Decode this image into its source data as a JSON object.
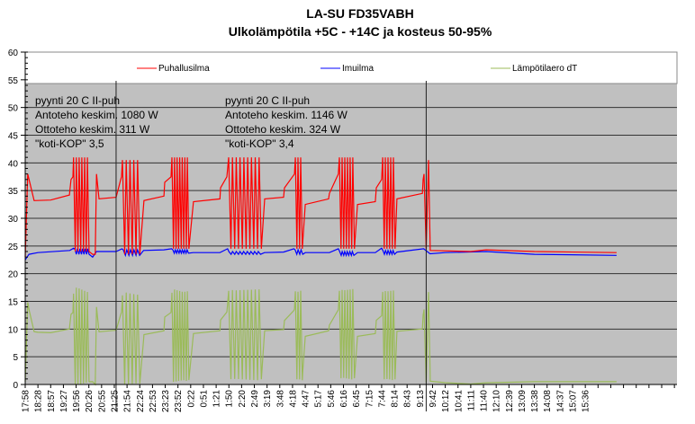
{
  "chart_data": {
    "type": "line",
    "title": "LA-SU FD35VABH",
    "subtitle": "Ulkolämpötila +5C - +14C ja kosteus 50-95%",
    "xlabel": "",
    "ylabel": "",
    "ylim": [
      0,
      60
    ],
    "yticks": [
      0,
      5,
      10,
      15,
      20,
      25,
      30,
      35,
      40,
      45,
      50,
      55,
      60
    ],
    "ytick_labels": [
      "0",
      "5",
      "10",
      "15",
      "20",
      "25",
      "30",
      "35",
      "40",
      "45",
      "50",
      "55",
      "60"
    ],
    "grid": true,
    "legend_position": "top",
    "x_tick_count": 52,
    "x_tick_labels": [
      "17:58",
      "18:28",
      "18:57",
      "19:27",
      "19:56",
      "20:26",
      "20:55",
      "21:25",
      "21:54",
      "22:24",
      "22:53",
      "23:23",
      "23:52",
      "0:22",
      "0:51",
      "1:21",
      "1:50",
      "2:20",
      "2:49",
      "3:19",
      "3:48",
      "4:18",
      "4:47",
      "5:17",
      "5:46",
      "6:16",
      "6:45",
      "7:15",
      "7:44",
      "8:14",
      "8:43",
      "9:13",
      "9:42",
      "10:12",
      "10:41",
      "11:11",
      "11:40",
      "12:10",
      "12:39",
      "13:09",
      "13:38",
      "14:08",
      "14:37",
      "15:07",
      "15:36"
    ],
    "x_units": "tick index (one label step ≈ 29.5 min)",
    "vertical_markers": [
      7.14,
      31.5
    ],
    "series": [
      {
        "name": "Puhallusilma",
        "color": "#ff0000",
        "points": [
          [
            0,
            23
          ],
          [
            0.2,
            38
          ],
          [
            0.7,
            33.2
          ],
          [
            2,
            33.3
          ],
          [
            3.47,
            34.2
          ],
          [
            3.6,
            37
          ],
          [
            3.75,
            37.5
          ],
          {
            "burst": [
              3.8,
              5.1,
              6,
              41,
              24
            ]
          },
          [
            5.3,
            23.5
          ],
          [
            5.5,
            23.5
          ],
          [
            5.6,
            38
          ],
          [
            5.8,
            33.5
          ],
          [
            7.14,
            33.8
          ],
          [
            7.5,
            37
          ],
          [
            7.57,
            37.5
          ],
          {
            "burst": [
              7.64,
              9.12,
              5,
              40.5,
              23.5
            ]
          },
          [
            9.33,
            33.2
          ],
          [
            10.9,
            34
          ],
          [
            10.96,
            36.5
          ],
          [
            11.46,
            37.5
          ],
          {
            "burst": [
              11.53,
              12.94,
              7,
              41,
              24.5
            ]
          },
          [
            13.22,
            33
          ],
          [
            15.3,
            33.5
          ],
          [
            15.35,
            35.5
          ],
          [
            15.84,
            37.5
          ],
          {
            "burst": [
              15.98,
              18.67,
              9,
              41,
              24.5
            ]
          },
          [
            18.81,
            33.5
          ],
          [
            20.3,
            33.8
          ],
          [
            20.37,
            35.5
          ],
          [
            21.15,
            38
          ],
          {
            "burst": [
              21.22,
              21.85,
              3,
              41,
              24.5
            ]
          },
          [
            22.0,
            32.5
          ],
          [
            23.83,
            33.5
          ],
          [
            23.9,
            34.5
          ],
          [
            24.6,
            38
          ],
          {
            "burst": [
              24.68,
              25.95,
              6,
              41,
              24.5
            ]
          },
          [
            26.1,
            32.5
          ],
          [
            27.5,
            33
          ],
          [
            27.58,
            35.5
          ],
          [
            28.0,
            37
          ],
          {
            "burst": [
              28.08,
              29.14,
              5,
              41,
              24.5
            ]
          },
          [
            29.2,
            33.5
          ],
          [
            31.2,
            34.5
          ],
          [
            31.26,
            37
          ],
          [
            31.33,
            38
          ],
          [
            31.5,
            24.5
          ],
          [
            31.68,
            40.5
          ],
          [
            31.82,
            24.2
          ],
          [
            35,
            24
          ],
          [
            36.2,
            24.3
          ],
          [
            40,
            24
          ],
          [
            46.46,
            23.8
          ]
        ]
      },
      {
        "name": "Imuilma",
        "color": "#0000ff",
        "points": [
          [
            0,
            22.5
          ],
          [
            0.3,
            23.5
          ],
          [
            1,
            23.8
          ],
          [
            3.5,
            24.2
          ],
          [
            3.8,
            24.6
          ],
          {
            "burst": [
              3.9,
              5.1,
              6,
              24.5,
              23.5
            ]
          },
          [
            5.3,
            23
          ],
          [
            5.6,
            24
          ],
          [
            7.14,
            24
          ],
          [
            7.6,
            24.5
          ],
          {
            "burst": [
              7.7,
              9.1,
              5,
              24.3,
              23.3
            ]
          },
          [
            9.3,
            24.2
          ],
          [
            10.9,
            24.3
          ],
          [
            11.5,
            24.5
          ],
          {
            "burst": [
              11.6,
              12.9,
              7,
              24.3,
              23.7
            ]
          },
          [
            13.2,
            23.8
          ],
          [
            15.3,
            23.8
          ],
          [
            15.9,
            24.5
          ],
          {
            "burst": [
              16,
              18.6,
              9,
              24,
              23.5
            ]
          },
          [
            18.8,
            23.8
          ],
          [
            20.3,
            23.9
          ],
          [
            21.1,
            24.5
          ],
          {
            "burst": [
              21.2,
              21.9,
              3,
              24.3,
              23.5
            ]
          },
          [
            22,
            23.8
          ],
          [
            23.9,
            23.8
          ],
          [
            24.6,
            24.5
          ],
          {
            "burst": [
              24.7,
              25.9,
              6,
              24,
              23.3
            ]
          },
          [
            26.1,
            23.8
          ],
          [
            27.5,
            23.8
          ],
          [
            28,
            24.6
          ],
          {
            "burst": [
              28.1,
              29.1,
              5,
              24.2,
              23.5
            ]
          },
          [
            29.2,
            23.9
          ],
          [
            31.3,
            24.5
          ],
          [
            31.8,
            23.6
          ],
          [
            33,
            23.8
          ],
          [
            36.2,
            24
          ],
          [
            40,
            23.5
          ],
          [
            46.46,
            23.3
          ]
        ]
      },
      {
        "name": "Lämpötilaero dT",
        "color": "#9bbb59",
        "derived": "Puhallusilma - Imuilma"
      }
    ],
    "annotations": [
      {
        "lines": [
          "pyynti 20 C II-puh",
          "Antoteho keskim. 1080 W",
          "Ottoteho keskim. 311 W",
          "\"koti-KOP\" 3,5"
        ]
      },
      {
        "lines": [
          "pyynti 20 C II-puh",
          "Antoteho keskim. 1146 W",
          "Ottoteho keskim. 324 W",
          "\"koti-KOP\" 3,4"
        ]
      }
    ]
  }
}
